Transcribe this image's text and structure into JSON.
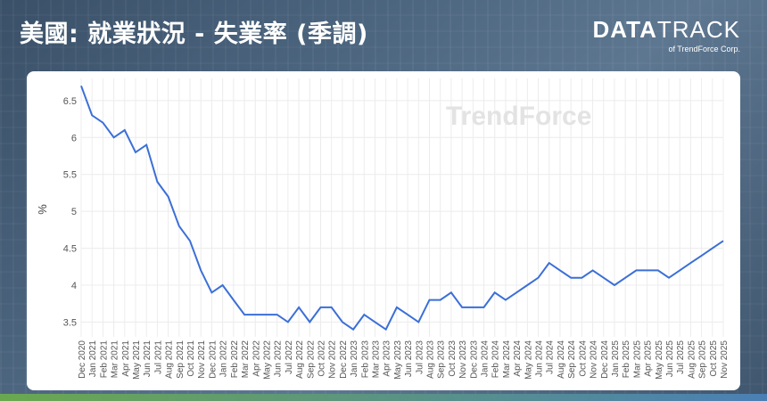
{
  "header": {
    "title": "美國: 就業狀況 - 失業率 (季調)",
    "brand_bold": "DATA",
    "brand_light": "TRACK",
    "brand_sub": "of TrendForce Corp."
  },
  "watermark": "TrendForce",
  "chart_data": {
    "type": "line",
    "title": "美國: 就業狀況 - 失業率 (季調)",
    "xlabel": "",
    "ylabel": "%",
    "ylim": [
      3.3,
      6.8
    ],
    "yticks": [
      3.5,
      4,
      4.5,
      5,
      5.5,
      6,
      6.5
    ],
    "grid": true,
    "color": "#3b6fd8",
    "categories": [
      "Dec 2020",
      "Jan 2021",
      "Feb 2021",
      "Mar 2021",
      "Apr 2021",
      "May 2021",
      "Jun 2021",
      "Jul 2021",
      "Aug 2021",
      "Sep 2021",
      "Oct 2021",
      "Nov 2021",
      "Dec 2021",
      "Jan 2022",
      "Feb 2022",
      "Mar 2022",
      "Apr 2022",
      "May 2022",
      "Jun 2022",
      "Jul 2022",
      "Aug 2022",
      "Sep 2022",
      "Oct 2022",
      "Nov 2022",
      "Dec 2022",
      "Jan 2023",
      "Feb 2023",
      "Mar 2023",
      "Apr 2023",
      "May 2023",
      "Jun 2023",
      "Jul 2023",
      "Aug 2023",
      "Sep 2023",
      "Oct 2023",
      "Nov 2023",
      "Dec 2023",
      "Jan 2024",
      "Feb 2024",
      "Mar 2024",
      "Apr 2024",
      "May 2024",
      "Jun 2024",
      "Jul 2024",
      "Aug 2024",
      "Sep 2024",
      "Oct 2024",
      "Nov 2024",
      "Dec 2024",
      "Jan 2025",
      "Feb 2025",
      "Mar 2025",
      "Apr 2025",
      "May 2025",
      "Jun 2025",
      "Jul 2025",
      "Aug 2025",
      "Sep 2025",
      "Oct 2025",
      "Nov 2025"
    ],
    "values": [
      6.7,
      6.3,
      6.2,
      6.0,
      6.1,
      5.8,
      5.9,
      5.4,
      5.2,
      4.8,
      4.6,
      4.2,
      3.9,
      4.0,
      3.8,
      3.6,
      3.6,
      3.6,
      3.6,
      3.5,
      3.7,
      3.5,
      3.7,
      3.7,
      3.5,
      3.4,
      3.6,
      3.5,
      3.4,
      3.7,
      3.6,
      3.5,
      3.8,
      3.8,
      3.9,
      3.7,
      3.7,
      3.7,
      3.9,
      3.8,
      3.9,
      4.0,
      4.1,
      4.3,
      4.2,
      4.1,
      4.1,
      4.2,
      4.1,
      4.0,
      4.1,
      4.2,
      4.2,
      4.2,
      4.1,
      4.2,
      4.3,
      4.4,
      4.5,
      4.6
    ]
  }
}
